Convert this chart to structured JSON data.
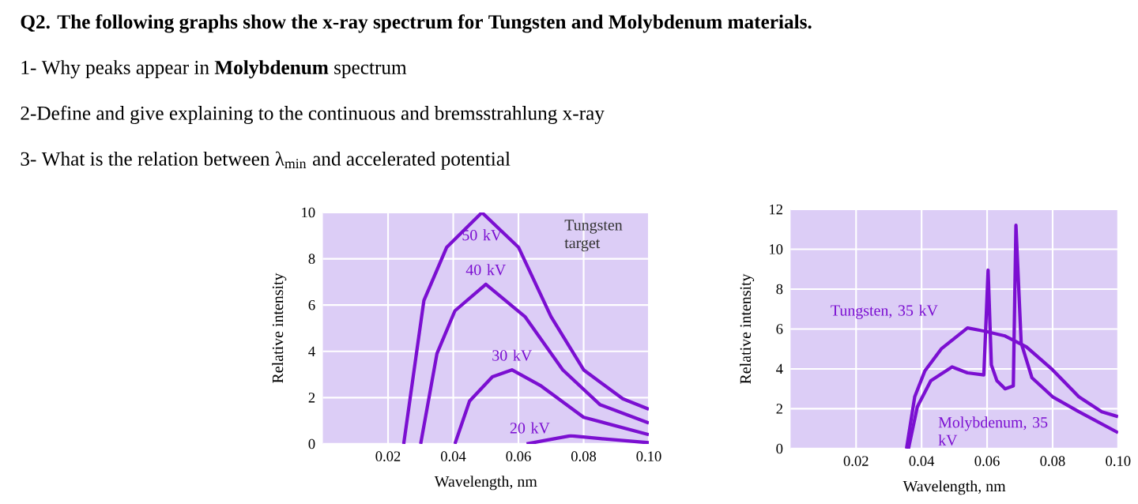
{
  "chart_data": [
    {
      "type": "line",
      "title": "Q2. The following graphs show the x-ray spectrum for Tungsten and Molybdenum materials.",
      "annotations": [
        "1- Why peaks appear in **Molybdenum** spectrum",
        "2-Define and give explaining to the continuous and bremsstrahlung x-ray",
        "3- What is the relation between λ$_{min}$ and accelerated potential",
        "Tungsten target"
      ],
      "xlabel": "Wavelength, nm",
      "ylabel": "Relative intensity",
      "xlim": [
        0,
        0.1
      ],
      "ylim": [
        0,
        10
      ],
      "xticks": [
        0.02,
        0.04,
        0.06,
        0.08,
        {
          "value": 0.1,
          "label": "0.10"
        }
      ],
      "yticks": [
        0,
        2,
        4,
        6,
        8,
        10
      ],
      "grid": true,
      "series": [
        {
          "name": "50 kV",
          "color": "#7b0fd1",
          "x": [
            0.0248,
            0.031,
            0.038,
            0.0488,
            0.06,
            0.07,
            0.08,
            0.092,
            0.1
          ],
          "values": [
            0,
            6.2,
            8.5,
            10,
            8.5,
            5.5,
            3.2,
            1.95,
            1.5
          ]
        },
        {
          "name": "40 kV",
          "color": "#7b0fd1",
          "x": [
            0.03,
            0.035,
            0.0405,
            0.05,
            0.062,
            0.0736,
            0.085,
            0.1
          ],
          "values": [
            0,
            3.9,
            5.75,
            6.9,
            5.5,
            3.2,
            1.7,
            0.9
          ]
        },
        {
          "name": "30 kV",
          "color": "#7b0fd1",
          "x": [
            0.0405,
            0.045,
            0.052,
            0.058,
            0.067,
            0.08,
            0.1
          ],
          "values": [
            0,
            1.85,
            2.9,
            3.2,
            2.5,
            1.15,
            0.4
          ]
        },
        {
          "name": "20 kV",
          "color": "#7b0fd1",
          "x": [
            0.0625,
            0.07,
            0.076,
            0.085,
            0.1
          ],
          "values": [
            0,
            0.2,
            0.35,
            0.23,
            0.05
          ]
        }
      ]
    },
    {
      "type": "line",
      "xlabel": "Wavelength, nm",
      "ylabel": "Relative intensity",
      "xlim": [
        0,
        0.1
      ],
      "ylim": [
        0,
        12
      ],
      "xticks": [
        0.02,
        0.04,
        0.06,
        0.08,
        {
          "value": 0.1,
          "label": "0.10"
        }
      ],
      "yticks": [
        0,
        2,
        4,
        6,
        8,
        10,
        12
      ],
      "grid": true,
      "series": [
        {
          "name": "Tungsten, 35 kV",
          "color": "#7b0fd1",
          "x": [
            0.0354,
            0.0379,
            0.041,
            0.046,
            0.054,
            0.059,
            0.0655,
            0.072,
            0.08,
            0.088,
            0.095,
            0.1
          ],
          "values": [
            0,
            2.6,
            3.9,
            5.0,
            6.05,
            5.9,
            5.65,
            5.1,
            3.95,
            2.6,
            1.85,
            1.6
          ]
        },
        {
          "name": "Molybdenum, 35 kV",
          "color": "#7b0fd1",
          "x": [
            0.036,
            0.0387,
            0.0428,
            0.0493,
            0.054,
            0.059,
            0.0603,
            0.0613,
            0.063,
            0.0655,
            0.068,
            0.0688,
            0.0704,
            0.0737,
            0.08,
            0.088,
            0.1
          ],
          "values": [
            0,
            2.1,
            3.4,
            4.1,
            3.8,
            3.7,
            8.95,
            4.2,
            3.4,
            3.0,
            3.15,
            11.2,
            5.3,
            3.55,
            2.6,
            1.85,
            0.8
          ]
        }
      ]
    }
  ]
}
